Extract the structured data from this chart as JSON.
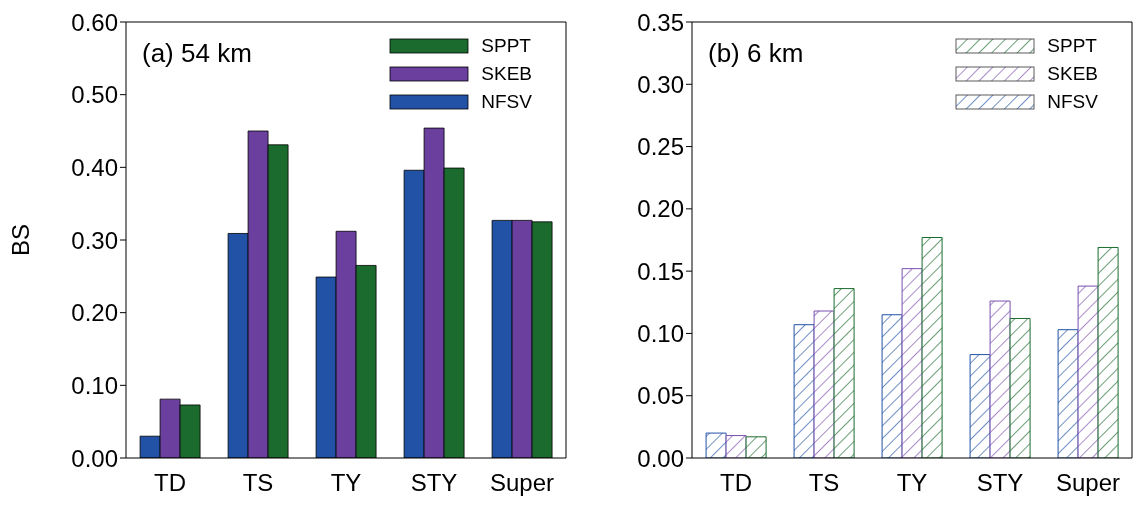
{
  "chart_data": [
    {
      "type": "bar",
      "title": "(a) 54 km",
      "ylabel": "BS",
      "categories": [
        "TD",
        "TS",
        "TY",
        "STY",
        "Super"
      ],
      "series": [
        {
          "name": "NFSV",
          "color": "#2152a6",
          "values": [
            0.03,
            0.309,
            0.249,
            0.396,
            0.327
          ]
        },
        {
          "name": "SKEB",
          "color": "#6a3f9e",
          "values": [
            0.081,
            0.45,
            0.312,
            0.454,
            0.327
          ]
        },
        {
          "name": "SPPT",
          "color": "#1c6b2e",
          "values": [
            0.073,
            0.431,
            0.265,
            0.399,
            0.325
          ]
        }
      ],
      "ylim": [
        0,
        0.6
      ],
      "yticks": [
        {
          "value": 0,
          "label": "0.00"
        },
        {
          "value": 0.1,
          "label": "0.10"
        },
        {
          "value": 0.2,
          "label": "0.20"
        },
        {
          "value": 0.3,
          "label": "0.30"
        },
        {
          "value": 0.4,
          "label": "0.40"
        },
        {
          "value": 0.5,
          "label": "0.50"
        },
        {
          "value": 0.6,
          "label": "0.60"
        }
      ],
      "grid": false,
      "legend": "top right"
    },
    {
      "type": "bar",
      "title": "(b) 6 km",
      "categories": [
        "TD",
        "TS",
        "TY",
        "STY",
        "Super"
      ],
      "series": [
        {
          "name": "NFSV",
          "color": "#2152a6",
          "values": [
            0.02,
            0.107,
            0.115,
            0.083,
            0.103
          ]
        },
        {
          "name": "SKEB",
          "color": "#7a4fae",
          "values": [
            0.018,
            0.118,
            0.152,
            0.126,
            0.138
          ]
        },
        {
          "name": "SPPT",
          "color": "#1c6b2e",
          "values": [
            0.017,
            0.136,
            0.177,
            0.112,
            0.169
          ]
        }
      ],
      "ylim": [
        0,
        0.35
      ],
      "yticks": [
        {
          "value": 0,
          "label": "0.00"
        },
        {
          "value": 0.05,
          "label": "0.05"
        },
        {
          "value": 0.1,
          "label": "0.10"
        },
        {
          "value": 0.15,
          "label": "0.15"
        },
        {
          "value": 0.2,
          "label": "0.20"
        },
        {
          "value": 0.25,
          "label": "0.25"
        },
        {
          "value": 0.3,
          "label": "0.30"
        },
        {
          "value": 0.35,
          "label": "0.35"
        }
      ],
      "grid": false,
      "legend": "top right"
    }
  ]
}
